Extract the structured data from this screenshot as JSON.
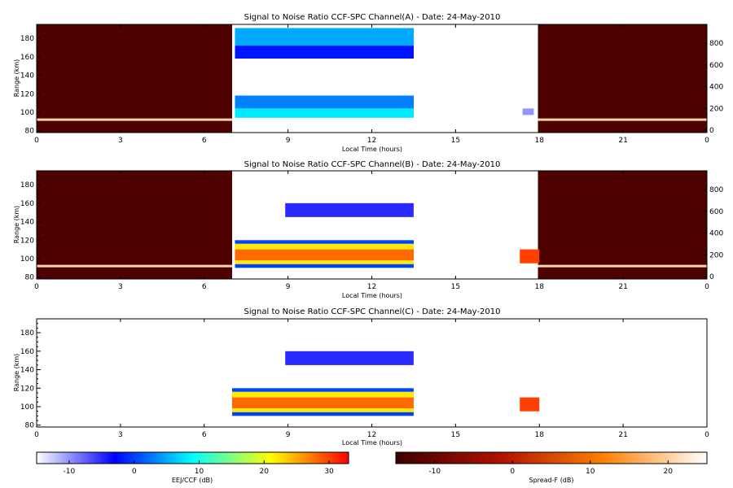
{
  "chart_data": [
    {
      "type": "heatmap",
      "title": "Signal to Noise Ratio CCF-SPC Channel(A) - Date: 24-May-2010",
      "xlabel": "Local Time (hours)",
      "ylabel": "Range (km)",
      "xlim": [
        0,
        24
      ],
      "ylim": [
        78,
        195
      ],
      "x_ticks": [
        "0",
        "3",
        "6",
        "9",
        "12",
        "15",
        "18",
        "21",
        "0"
      ],
      "y_ticks": [
        "80",
        "100",
        "120",
        "140",
        "160",
        "180"
      ],
      "right_ticks": [
        "0",
        "200",
        "400",
        "600",
        "800"
      ],
      "regions": [
        {
          "kind": "spreadf",
          "t": [
            0,
            7
          ],
          "range": [
            78,
            195
          ],
          "level_db": -13
        },
        {
          "kind": "spreadf",
          "t": [
            17.95,
            24
          ],
          "range": [
            78,
            195
          ],
          "level_db": -13
        },
        {
          "kind": "eej",
          "t": [
            7.1,
            13.5
          ],
          "range": [
            172,
            191
          ],
          "level_db": 5
        },
        {
          "kind": "eej",
          "t": [
            7.1,
            13.5
          ],
          "range": [
            158,
            172
          ],
          "level_db": -2
        },
        {
          "kind": "eej",
          "t": [
            7.1,
            13.5
          ],
          "range": [
            104,
            118
          ],
          "level_db": 3
        },
        {
          "kind": "eej",
          "t": [
            7.1,
            13.5
          ],
          "range": [
            94,
            104
          ],
          "level_db": 8
        },
        {
          "kind": "eej",
          "t": [
            17.4,
            17.8
          ],
          "range": [
            97,
            104
          ],
          "level_db": -10
        }
      ],
      "lines": [
        {
          "t": [
            0,
            7
          ],
          "range": 92,
          "kind": "spreadf"
        },
        {
          "t": [
            17.95,
            24
          ],
          "range": 92,
          "kind": "spreadf"
        }
      ]
    },
    {
      "type": "heatmap",
      "title": "Signal to Noise Ratio CCF-SPC Channel(B) - Date: 24-May-2010",
      "xlabel": "Local Time (hours)",
      "ylabel": "Range (km)",
      "xlim": [
        0,
        24
      ],
      "ylim": [
        78,
        195
      ],
      "x_ticks": [
        "0",
        "3",
        "6",
        "9",
        "12",
        "15",
        "18",
        "21",
        "0"
      ],
      "y_ticks": [
        "80",
        "100",
        "120",
        "140",
        "160",
        "180"
      ],
      "right_ticks": [
        "0",
        "200",
        "400",
        "600",
        "800"
      ],
      "regions": [
        {
          "kind": "spreadf",
          "t": [
            0,
            7
          ],
          "range": [
            78,
            195
          ],
          "level_db": -13
        },
        {
          "kind": "spreadf",
          "t": [
            17.95,
            24
          ],
          "range": [
            78,
            195
          ],
          "level_db": -13
        },
        {
          "kind": "eej",
          "t": [
            8.9,
            13.5
          ],
          "range": [
            145,
            160
          ],
          "level_db": -5
        },
        {
          "kind": "eej",
          "t": [
            7.1,
            13.5
          ],
          "range": [
            116,
            120
          ],
          "level_db": 0
        },
        {
          "kind": "eej",
          "t": [
            7.1,
            13.5
          ],
          "range": [
            110,
            116
          ],
          "level_db": 22
        },
        {
          "kind": "eej",
          "t": [
            7.1,
            13.5
          ],
          "range": [
            98,
            110
          ],
          "level_db": 28
        },
        {
          "kind": "eej",
          "t": [
            7.1,
            13.5
          ],
          "range": [
            94,
            98
          ],
          "level_db": 22
        },
        {
          "kind": "eej",
          "t": [
            7.1,
            13.5
          ],
          "range": [
            90,
            94
          ],
          "level_db": 0
        },
        {
          "kind": "eej",
          "t": [
            17.3,
            18.0
          ],
          "range": [
            95,
            110
          ],
          "level_db": 30
        }
      ],
      "lines": [
        {
          "t": [
            0,
            7
          ],
          "range": 92,
          "kind": "spreadf"
        },
        {
          "t": [
            17.95,
            24
          ],
          "range": 92,
          "kind": "spreadf"
        }
      ]
    },
    {
      "type": "heatmap",
      "title": "Signal to Noise Ratio CCF-SPC Channel(C) - Date: 24-May-2010",
      "xlabel": "Local Time (hours)",
      "ylabel": "Range (km)",
      "xlim": [
        0,
        24
      ],
      "ylim": [
        78,
        195
      ],
      "x_ticks": [
        "0",
        "3",
        "6",
        "9",
        "12",
        "15",
        "18",
        "21",
        "0"
      ],
      "y_ticks": [
        "80",
        "100",
        "120",
        "140",
        "160",
        "180"
      ],
      "right_ticks": [],
      "regions": [
        {
          "kind": "eej",
          "t": [
            8.9,
            13.5
          ],
          "range": [
            145,
            160
          ],
          "level_db": -5
        },
        {
          "kind": "eej",
          "t": [
            7.0,
            13.5
          ],
          "range": [
            116,
            120
          ],
          "level_db": 0
        },
        {
          "kind": "eej",
          "t": [
            7.0,
            13.5
          ],
          "range": [
            110,
            116
          ],
          "level_db": 22
        },
        {
          "kind": "eej",
          "t": [
            7.0,
            13.5
          ],
          "range": [
            98,
            110
          ],
          "level_db": 28
        },
        {
          "kind": "eej",
          "t": [
            7.0,
            13.5
          ],
          "range": [
            94,
            98
          ],
          "level_db": 22
        },
        {
          "kind": "eej",
          "t": [
            7.0,
            13.5
          ],
          "range": [
            90,
            94
          ],
          "level_db": 0
        },
        {
          "kind": "eej",
          "t": [
            17.3,
            18.0
          ],
          "range": [
            95,
            110
          ],
          "level_db": 30
        }
      ],
      "lines": []
    }
  ],
  "colorbars": [
    {
      "label": "EEJ/CCF (dB)",
      "range": [
        -15,
        33
      ],
      "ticks": [
        "-10",
        "0",
        "10",
        "20",
        "30"
      ],
      "colors": [
        "#ffffff",
        "#0000ff",
        "#00ffff",
        "#ffff00",
        "#ff0000"
      ]
    },
    {
      "label": "Spread-F (dB)",
      "range": [
        -15,
        25
      ],
      "ticks": [
        "-10",
        "0",
        "10",
        "20"
      ],
      "colors": [
        "#3c0000",
        "#b01000",
        "#ff8000",
        "#ffffff"
      ]
    }
  ]
}
